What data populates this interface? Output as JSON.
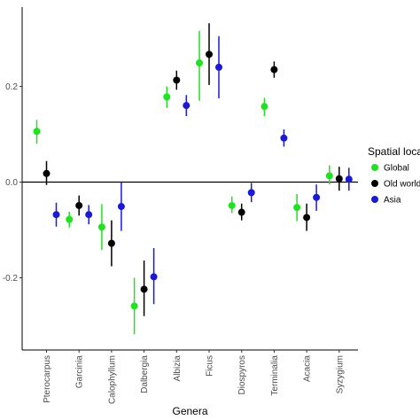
{
  "chart_data": {
    "type": "scatter",
    "subtype": "point-range",
    "xlabel": "Genera",
    "ylabel": "",
    "categories": [
      "Pterocarpus",
      "Garcinia",
      "Calophyllum",
      "Dalbergia",
      "Albizia",
      "Ficus",
      "Diospyros",
      "Terminalia",
      "Acacia",
      "Syzygium"
    ],
    "ylim": [
      -0.39,
      0.36
    ],
    "yticks": [
      -0.2,
      0.0,
      0.2
    ],
    "ytick_labels": [
      "-0.2",
      "0.0",
      "0.2"
    ],
    "reference_line": 0.0,
    "grid": false,
    "legend": {
      "title": "Spatial loca",
      "position": "right"
    },
    "series": [
      {
        "name": "Global",
        "color": "#22e022",
        "values": [
          0.106,
          -0.078,
          -0.094,
          -0.259,
          0.178,
          0.249,
          -0.049,
          0.158,
          -0.053,
          0.013
        ],
        "lower": [
          0.08,
          -0.095,
          -0.142,
          -0.318,
          0.155,
          0.17,
          -0.065,
          0.138,
          -0.082,
          -0.005
        ],
        "upper": [
          0.13,
          -0.062,
          -0.046,
          -0.2,
          0.2,
          0.316,
          -0.03,
          0.176,
          -0.025,
          0.035
        ]
      },
      {
        "name": "Old world",
        "color": "#000000",
        "values": [
          0.018,
          -0.049,
          -0.128,
          -0.224,
          0.213,
          0.267,
          -0.063,
          0.235,
          -0.074,
          0.007
        ],
        "lower": [
          -0.006,
          -0.07,
          -0.176,
          -0.28,
          0.193,
          0.203,
          -0.08,
          0.218,
          -0.102,
          -0.018
        ],
        "upper": [
          0.044,
          -0.028,
          -0.08,
          -0.164,
          0.233,
          0.332,
          -0.045,
          0.252,
          -0.045,
          0.032
        ]
      },
      {
        "name": "Asia",
        "color": "#1a1ad4",
        "values": [
          -0.068,
          -0.068,
          -0.051,
          -0.198,
          0.16,
          0.24,
          -0.022,
          0.092,
          -0.032,
          0.006
        ],
        "lower": [
          -0.093,
          -0.088,
          -0.102,
          -0.255,
          0.138,
          0.175,
          -0.042,
          0.074,
          -0.06,
          -0.018
        ],
        "upper": [
          -0.043,
          -0.048,
          0.0,
          -0.138,
          0.182,
          0.305,
          -0.002,
          0.11,
          -0.005,
          0.03
        ]
      }
    ]
  }
}
